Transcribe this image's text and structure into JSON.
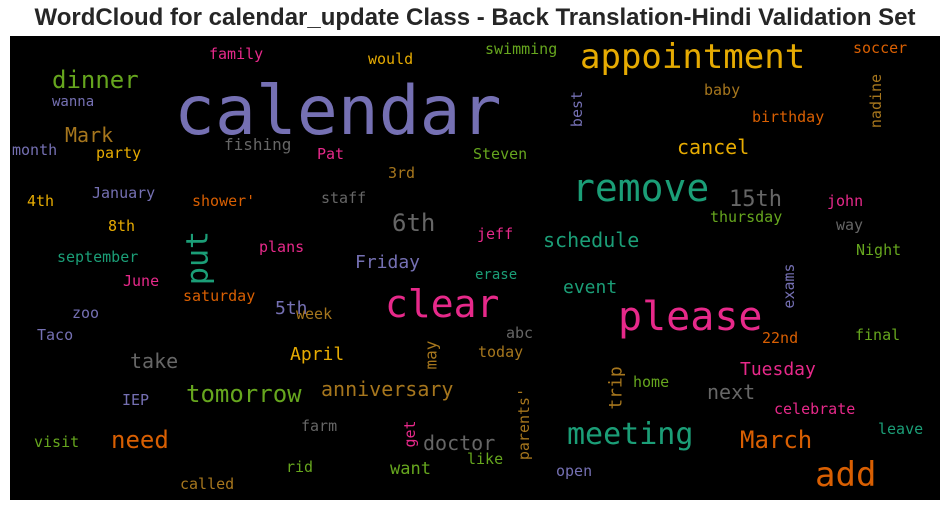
{
  "title": "WordCloud for calendar_update Class - Back Translation-Hindi Validation Set",
  "chart_data": {
    "type": "wordcloud",
    "background": "#000000",
    "words": [
      {
        "text": "calendar",
        "weight": 1.0,
        "color": "#7570b3",
        "orient": "h"
      },
      {
        "text": "appointment",
        "weight": 0.42,
        "color": "#e6ab02",
        "orient": "h"
      },
      {
        "text": "remove",
        "weight": 0.47,
        "color": "#1b9e77",
        "orient": "h"
      },
      {
        "text": "please",
        "weight": 0.5,
        "color": "#e7298a",
        "orient": "h"
      },
      {
        "text": "clear",
        "weight": 0.47,
        "color": "#e7298a",
        "orient": "h"
      },
      {
        "text": "add",
        "weight": 0.42,
        "color": "#d95f02",
        "orient": "h"
      },
      {
        "text": "meeting",
        "weight": 0.4,
        "color": "#1b9e77",
        "orient": "h"
      },
      {
        "text": "put",
        "weight": 0.36,
        "color": "#1b9e77",
        "orient": "v"
      },
      {
        "text": "dinner",
        "weight": 0.3,
        "color": "#66a61e",
        "orient": "h"
      },
      {
        "text": "need",
        "weight": 0.3,
        "color": "#d95f02",
        "orient": "h"
      },
      {
        "text": "March",
        "weight": 0.3,
        "color": "#d95f02",
        "orient": "h"
      },
      {
        "text": "tomorrow",
        "weight": 0.3,
        "color": "#66a61e",
        "orient": "h"
      },
      {
        "text": "6th",
        "weight": 0.3,
        "color": "#666666",
        "orient": "h"
      },
      {
        "text": "15th",
        "weight": 0.26,
        "color": "#666666",
        "orient": "h"
      },
      {
        "text": "schedule",
        "weight": 0.24,
        "color": "#1b9e77",
        "orient": "h"
      },
      {
        "text": "cancel",
        "weight": 0.24,
        "color": "#e6ab02",
        "orient": "h"
      },
      {
        "text": "anniversary",
        "weight": 0.24,
        "color": "#a6761d",
        "orient": "h"
      },
      {
        "text": "Mark",
        "weight": 0.24,
        "color": "#a6761d",
        "orient": "h"
      },
      {
        "text": "take",
        "weight": 0.24,
        "color": "#666666",
        "orient": "h"
      },
      {
        "text": "doctor",
        "weight": 0.24,
        "color": "#666666",
        "orient": "h"
      },
      {
        "text": "next",
        "weight": 0.24,
        "color": "#666666",
        "orient": "h"
      },
      {
        "text": "Tuesday",
        "weight": 0.22,
        "color": "#e7298a",
        "orient": "h"
      },
      {
        "text": "April",
        "weight": 0.22,
        "color": "#e6ab02",
        "orient": "h"
      },
      {
        "text": "Friday",
        "weight": 0.22,
        "color": "#7570b3",
        "orient": "h"
      },
      {
        "text": "5th",
        "weight": 0.22,
        "color": "#7570b3",
        "orient": "h"
      },
      {
        "text": "event",
        "weight": 0.22,
        "color": "#1b9e77",
        "orient": "h"
      },
      {
        "text": "want",
        "weight": 0.2,
        "color": "#66a61e",
        "orient": "h"
      },
      {
        "text": "trip",
        "weight": 0.22,
        "color": "#a6761d",
        "orient": "v"
      },
      {
        "text": "may",
        "weight": 0.2,
        "color": "#a6761d",
        "orient": "v"
      },
      {
        "text": "birthday",
        "weight": 0.16,
        "color": "#d95f02",
        "orient": "h"
      },
      {
        "text": "baby",
        "weight": 0.16,
        "color": "#a6761d",
        "orient": "h"
      },
      {
        "text": "soccer",
        "weight": 0.15,
        "color": "#d95f02",
        "orient": "h"
      },
      {
        "text": "nadine",
        "weight": 0.15,
        "color": "#a6761d",
        "orient": "v"
      },
      {
        "text": "best",
        "weight": 0.15,
        "color": "#7570b3",
        "orient": "v"
      },
      {
        "text": "swimming",
        "weight": 0.15,
        "color": "#66a61e",
        "orient": "h"
      },
      {
        "text": "would",
        "weight": 0.15,
        "color": "#e6ab02",
        "orient": "h"
      },
      {
        "text": "family",
        "weight": 0.15,
        "color": "#e7298a",
        "orient": "h"
      },
      {
        "text": "wanna",
        "weight": 0.15,
        "color": "#7570b3",
        "orient": "h"
      },
      {
        "text": "fishing",
        "weight": 0.16,
        "color": "#666666",
        "orient": "h"
      },
      {
        "text": "month",
        "weight": 0.15,
        "color": "#7570b3",
        "orient": "h"
      },
      {
        "text": "party",
        "weight": 0.15,
        "color": "#e6ab02",
        "orient": "h"
      },
      {
        "text": "Pat",
        "weight": 0.15,
        "color": "#e7298a",
        "orient": "h"
      },
      {
        "text": "Steven",
        "weight": 0.15,
        "color": "#66a61e",
        "orient": "h"
      },
      {
        "text": "3rd",
        "weight": 0.15,
        "color": "#a6761d",
        "orient": "h"
      },
      {
        "text": "4th",
        "weight": 0.15,
        "color": "#e6ab02",
        "orient": "h"
      },
      {
        "text": "January",
        "weight": 0.15,
        "color": "#7570b3",
        "orient": "h"
      },
      {
        "text": "shower'",
        "weight": 0.15,
        "color": "#d95f02",
        "orient": "h"
      },
      {
        "text": "staff",
        "weight": 0.15,
        "color": "#666666",
        "orient": "h"
      },
      {
        "text": "john",
        "weight": 0.15,
        "color": "#e7298a",
        "orient": "h"
      },
      {
        "text": "thursday",
        "weight": 0.15,
        "color": "#66a61e",
        "orient": "h"
      },
      {
        "text": "way",
        "weight": 0.15,
        "color": "#666666",
        "orient": "h"
      },
      {
        "text": "8th",
        "weight": 0.15,
        "color": "#e6ab02",
        "orient": "h"
      },
      {
        "text": "jeff",
        "weight": 0.15,
        "color": "#e7298a",
        "orient": "h"
      },
      {
        "text": "september",
        "weight": 0.15,
        "color": "#1b9e77",
        "orient": "h"
      },
      {
        "text": "plans",
        "weight": 0.15,
        "color": "#e7298a",
        "orient": "h"
      },
      {
        "text": "Night",
        "weight": 0.15,
        "color": "#66a61e",
        "orient": "h"
      },
      {
        "text": "June",
        "weight": 0.15,
        "color": "#e7298a",
        "orient": "h"
      },
      {
        "text": "erase",
        "weight": 0.14,
        "color": "#1b9e77",
        "orient": "h"
      },
      {
        "text": "exams",
        "weight": 0.15,
        "color": "#7570b3",
        "orient": "v"
      },
      {
        "text": "saturday",
        "weight": 0.15,
        "color": "#d95f02",
        "orient": "h"
      },
      {
        "text": "zoo",
        "weight": 0.15,
        "color": "#7570b3",
        "orient": "h"
      },
      {
        "text": "week",
        "weight": 0.15,
        "color": "#a6761d",
        "orient": "h"
      },
      {
        "text": "Taco",
        "weight": 0.15,
        "color": "#7570b3",
        "orient": "h"
      },
      {
        "text": "abc",
        "weight": 0.15,
        "color": "#666666",
        "orient": "h"
      },
      {
        "text": "22nd",
        "weight": 0.15,
        "color": "#d95f02",
        "orient": "h"
      },
      {
        "text": "final",
        "weight": 0.15,
        "color": "#66a61e",
        "orient": "h"
      },
      {
        "text": "today",
        "weight": 0.15,
        "color": "#a6761d",
        "orient": "h"
      },
      {
        "text": "home",
        "weight": 0.15,
        "color": "#66a61e",
        "orient": "h"
      },
      {
        "text": "IEP",
        "weight": 0.15,
        "color": "#7570b3",
        "orient": "h"
      },
      {
        "text": "parents'",
        "weight": 0.15,
        "color": "#a6761d",
        "orient": "v"
      },
      {
        "text": "celebrate",
        "weight": 0.15,
        "color": "#e7298a",
        "orient": "h"
      },
      {
        "text": "farm",
        "weight": 0.15,
        "color": "#666666",
        "orient": "h"
      },
      {
        "text": "leave",
        "weight": 0.15,
        "color": "#1b9e77",
        "orient": "h"
      },
      {
        "text": "get",
        "weight": 0.15,
        "color": "#e7298a",
        "orient": "v"
      },
      {
        "text": "visit",
        "weight": 0.15,
        "color": "#66a61e",
        "orient": "h"
      },
      {
        "text": "like",
        "weight": 0.15,
        "color": "#66a61e",
        "orient": "h"
      },
      {
        "text": "rid",
        "weight": 0.15,
        "color": "#66a61e",
        "orient": "h"
      },
      {
        "text": "open",
        "weight": 0.15,
        "color": "#7570b3",
        "orient": "h"
      },
      {
        "text": "called",
        "weight": 0.15,
        "color": "#a6761d",
        "orient": "h"
      }
    ]
  }
}
